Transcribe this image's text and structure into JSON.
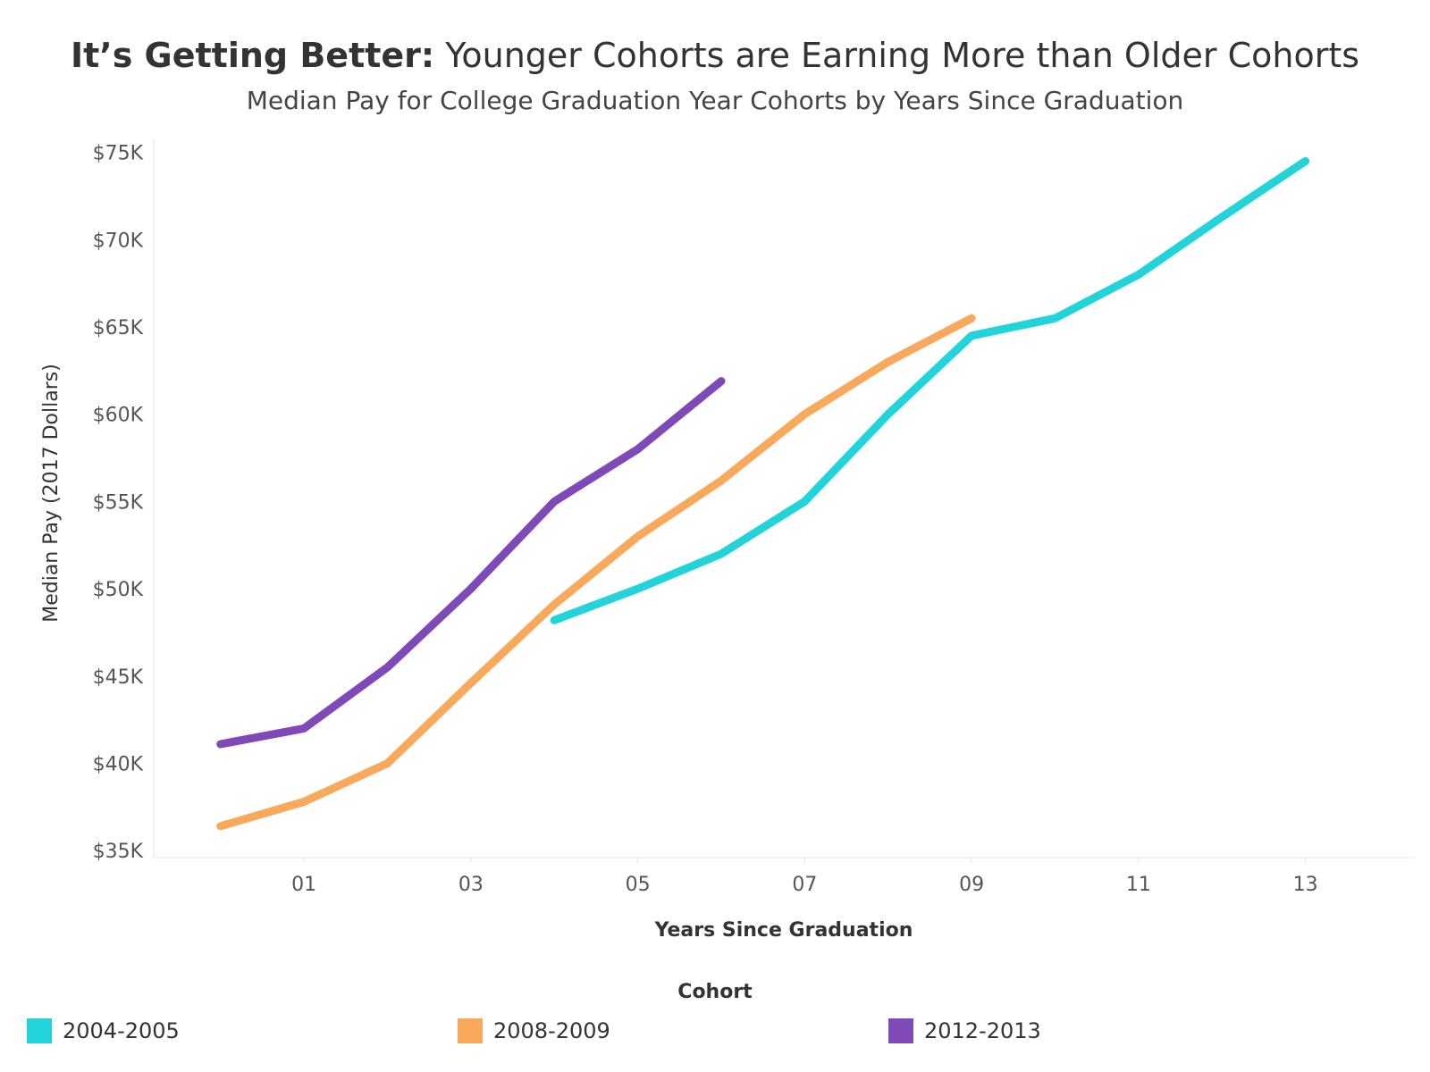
{
  "chart_data": {
    "type": "line",
    "title_bold": "It’s Getting Better:",
    "title_rest": " Younger Cohorts are Earning More than Older Cohorts",
    "subtitle": "Median Pay for College Graduation Year Cohorts by Years Since Graduation",
    "xlabel": "Years Since Graduation",
    "ylabel": "Median Pay (2017 Dollars)",
    "xlim": [
      -0.8,
      14.3
    ],
    "ylim": [
      34600,
      75800
    ],
    "x_ticks": [
      1,
      3,
      5,
      7,
      9,
      11,
      13
    ],
    "x_tick_labels": [
      "01",
      "03",
      "05",
      "07",
      "09",
      "11",
      "13"
    ],
    "y_ticks": [
      35000,
      40000,
      45000,
      50000,
      55000,
      60000,
      65000,
      70000,
      75000
    ],
    "y_tick_labels": [
      "$35K",
      "$40K",
      "$45K",
      "$50K",
      "$55K",
      "$60K",
      "$65K",
      "$70K",
      "$75K"
    ],
    "legend_title": "Cohort",
    "legend_position": "bottom",
    "series": [
      {
        "name": "2004-2005",
        "color": "#22d3d9",
        "x": [
          4,
          5,
          6,
          7,
          8,
          9,
          10,
          11,
          12,
          13
        ],
        "values": [
          48200,
          50000,
          52000,
          55000,
          60000,
          64500,
          65500,
          68000,
          71300,
          74500
        ]
      },
      {
        "name": "2008-2009",
        "color": "#f8a95c",
        "x": [
          0,
          1,
          2,
          3,
          4,
          5,
          6,
          7,
          8,
          9
        ],
        "values": [
          36400,
          37800,
          40000,
          44600,
          49100,
          53000,
          56200,
          60000,
          63000,
          65500
        ]
      },
      {
        "name": "2012-2013",
        "color": "#7f4ab8",
        "x": [
          0,
          1,
          2,
          3,
          4,
          5,
          6
        ],
        "values": [
          41100,
          42000,
          45500,
          50000,
          55000,
          58000,
          61900
        ]
      }
    ]
  }
}
